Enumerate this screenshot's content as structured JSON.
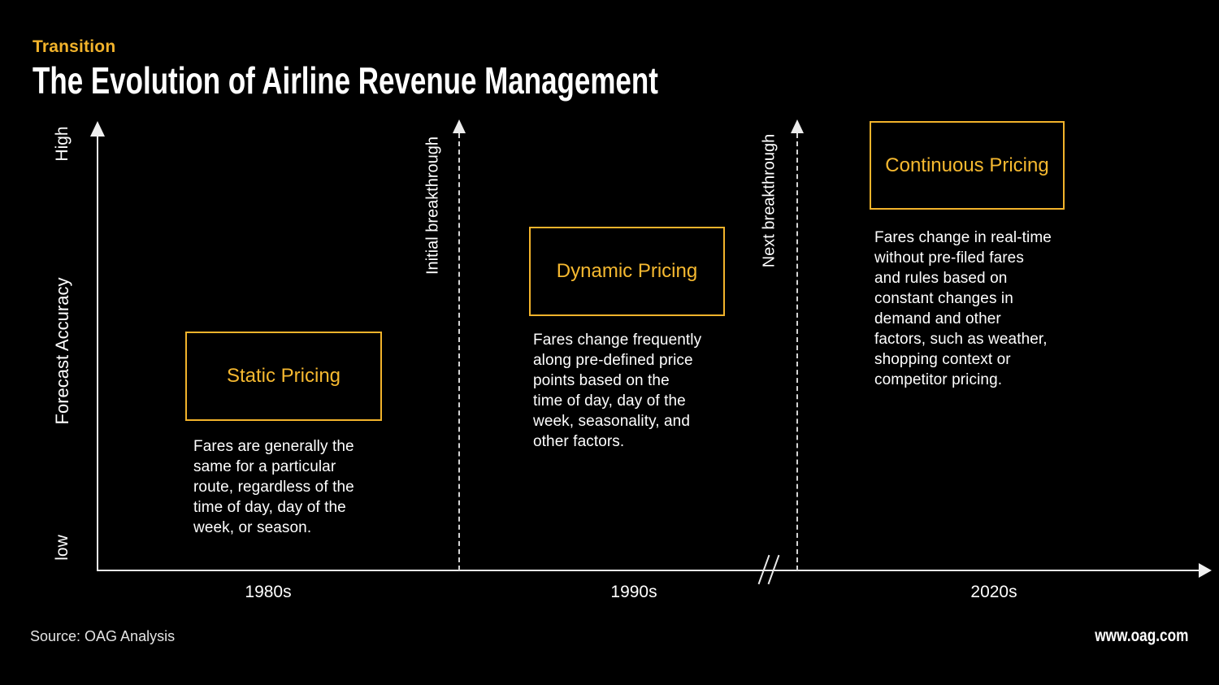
{
  "colors": {
    "background": "#000000",
    "accent_gold": "#F2B32B",
    "text_white": "#FFFFFF",
    "muted_gray": "#E4E4E4"
  },
  "header": {
    "eyebrow": "Transition",
    "title": "The Evolution of Airline Revenue Management"
  },
  "y_axis": {
    "high_label": "High",
    "title": "Forecast Accuracy",
    "low_label": "low"
  },
  "x_axis": {
    "ticks": [
      "1980s",
      "1990s",
      "2020s"
    ]
  },
  "milestones": [
    {
      "label": "Initial breakthrough"
    },
    {
      "label": "Next breakthrough"
    }
  ],
  "stages": [
    {
      "title": "Static Pricing",
      "decade": "1980s",
      "description": "Fares are generally the\nsame for a particular\nroute, regardless of the\ntime of day, day of the\nweek, or season."
    },
    {
      "title": "Dynamic Pricing",
      "decade": "1990s",
      "description": "Fares change frequently\nalong pre-defined price\npoints based on the\ntime of day, day of the\nweek, seasonality, and\nother factors."
    },
    {
      "title": "Continuous Pricing",
      "decade": "2020s",
      "description": "Fares change in real-time\nwithout pre-filed fares\nand rules based on\nconstant changes in\ndemand and other\nfactors, such as weather,\nshopping context or\ncompetitor pricing."
    }
  ],
  "footer": {
    "source": "Source: OAG Analysis",
    "website": "www.oag.com"
  }
}
